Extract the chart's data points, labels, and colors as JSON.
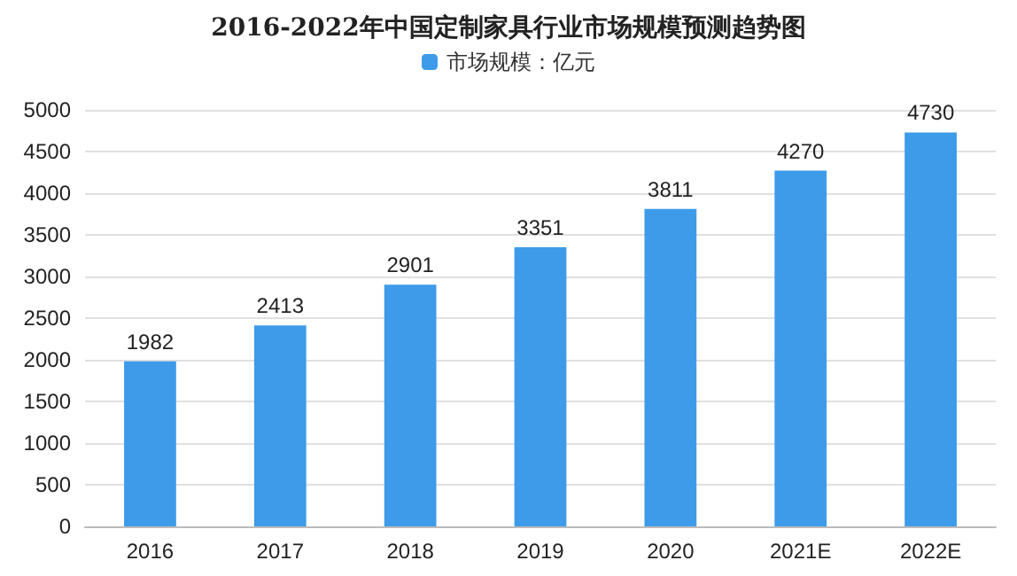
{
  "chart_data": {
    "type": "bar",
    "title": "2016-2022年中国定制家具行业市场规模预测趋势图",
    "categories": [
      "2016",
      "2017",
      "2018",
      "2019",
      "2020",
      "2021E",
      "2022E"
    ],
    "series": [
      {
        "name": "市场规模：亿元",
        "color": "#3d9be9",
        "values": [
          1982,
          2413,
          2901,
          3351,
          3811,
          4270,
          4730
        ]
      }
    ],
    "ylim": [
      0,
      5000
    ],
    "yticks": [
      0,
      500,
      1000,
      1500,
      2000,
      2500,
      3000,
      3500,
      4000,
      4500,
      5000
    ],
    "grid": "y",
    "legend": "top",
    "data_labels": true
  }
}
